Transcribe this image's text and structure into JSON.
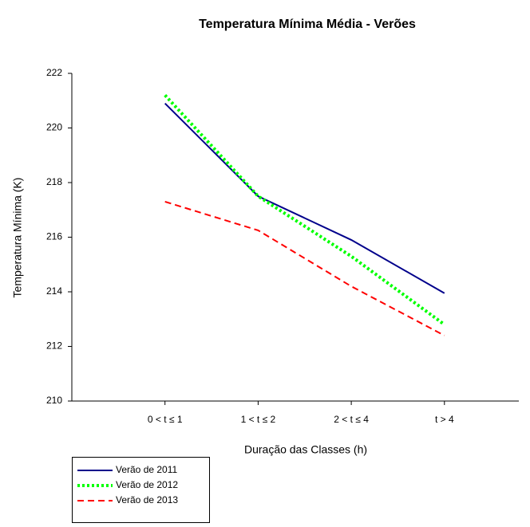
{
  "chart_data": {
    "type": "line",
    "title": "Temperatura Mínima Média - Verões",
    "x_label": "Duração das Classes (h)",
    "y_label": "Temperatura Mínima (K)",
    "categories": [
      "0 < t ≤ 1",
      "1 < t ≤ 2",
      "2 < t ≤ 4",
      "t > 4"
    ],
    "series": [
      {
        "name": "Verão de 2011",
        "color": "#00008b",
        "style": "solid",
        "values": [
          220.9,
          217.5,
          215.9,
          213.95
        ]
      },
      {
        "name": "Verão de 2012",
        "color": "#00ff00",
        "style": "dotted",
        "values": [
          221.2,
          217.5,
          215.3,
          212.8
        ]
      },
      {
        "name": "Verão de 2013",
        "color": "#ff0000",
        "style": "dashed",
        "values": [
          217.3,
          216.25,
          214.2,
          212.4
        ]
      }
    ],
    "ylim": [
      210,
      222
    ],
    "yticks": [
      210,
      212,
      214,
      216,
      218,
      220,
      222
    ],
    "grid": false
  }
}
